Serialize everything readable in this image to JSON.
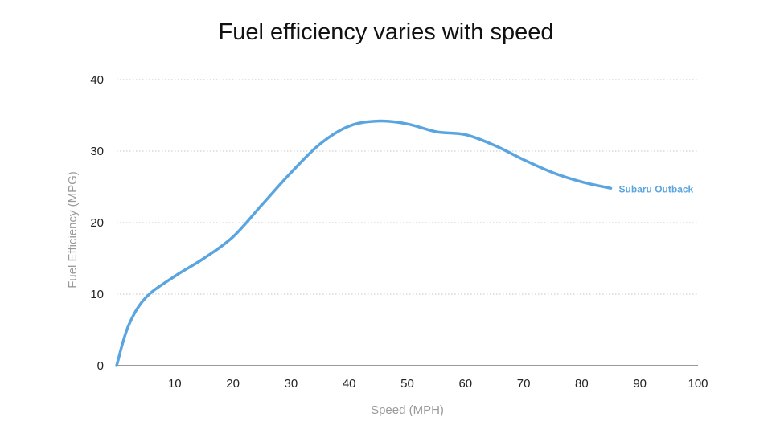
{
  "chart_data": {
    "type": "line",
    "title": "Fuel efficiency varies with speed",
    "xlabel": "Speed (MPH)",
    "ylabel": "Fuel Efficiency (MPG)",
    "xlim": [
      0,
      100
    ],
    "ylim": [
      0,
      40
    ],
    "xticks": [
      10,
      20,
      30,
      40,
      50,
      60,
      70,
      80,
      90,
      100
    ],
    "yticks": [
      0,
      10,
      20,
      30,
      40
    ],
    "grid": "horizontal dotted",
    "series": [
      {
        "name": "Subaru Outback",
        "color": "#5aa5e0",
        "x": [
          0,
          2,
          5,
          10,
          15,
          20,
          25,
          30,
          35,
          40,
          45,
          50,
          55,
          60,
          65,
          70,
          75,
          80,
          85
        ],
        "y": [
          0,
          5.5,
          9.5,
          12.5,
          15,
          18,
          22.5,
          27,
          31,
          33.5,
          34.2,
          33.8,
          32.7,
          32.3,
          30.8,
          28.8,
          27,
          25.7,
          24.8
        ]
      }
    ]
  }
}
